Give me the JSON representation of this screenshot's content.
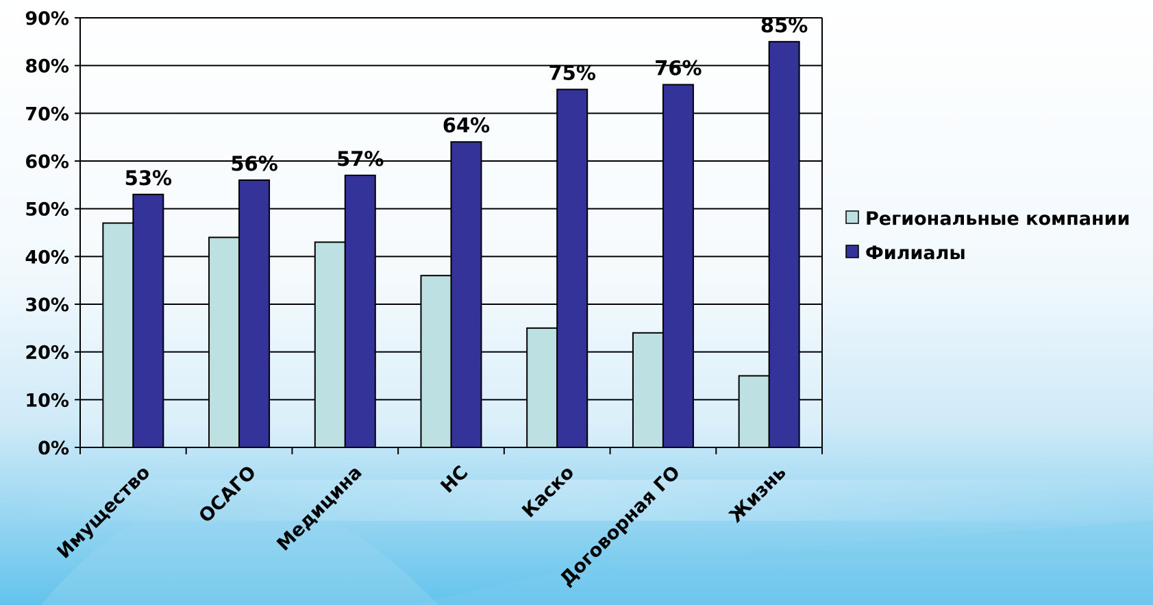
{
  "chart_data": {
    "type": "bar",
    "categories": [
      "Имущество",
      "ОСАГО",
      "Медицина",
      "НС",
      "Каско",
      "Договорная ГО",
      "Жизнь"
    ],
    "series": [
      {
        "name": "Региональные компании",
        "values": [
          47,
          44,
          43,
          36,
          25,
          24,
          15
        ],
        "color": "#bde0e2"
      },
      {
        "name": "Филиалы",
        "values": [
          53,
          56,
          57,
          64,
          75,
          76,
          85
        ],
        "color": "#333399"
      }
    ],
    "data_labels": [
      "53%",
      "56%",
      "57%",
      "64%",
      "75%",
      "76%",
      "85%"
    ],
    "y_ticks": [
      "0%",
      "10%",
      "20%",
      "30%",
      "40%",
      "50%",
      "60%",
      "70%",
      "80%",
      "90%"
    ],
    "ylim": [
      0,
      90
    ],
    "y_unit": "%",
    "grid": true,
    "legend_position": "right",
    "title": "",
    "xlabel": "",
    "ylabel": ""
  }
}
